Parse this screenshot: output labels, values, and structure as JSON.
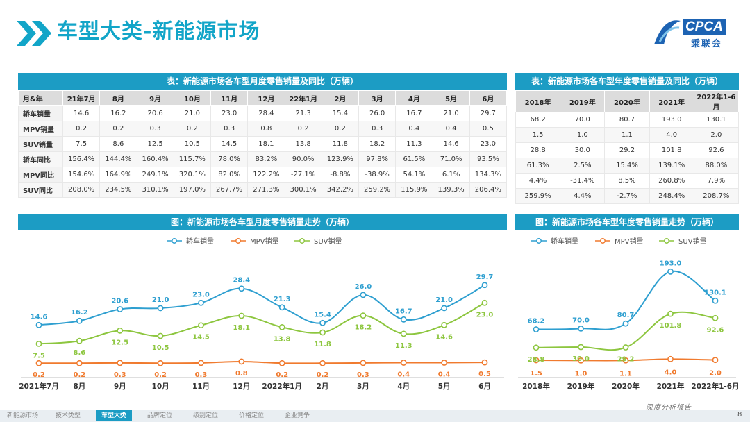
{
  "page_title": "车型大类-新能源市场",
  "logo": {
    "text": "CPCA",
    "subtext": "乘联会"
  },
  "table_monthly": {
    "title": "表：新能源市场各车型月度零售销量及同比（万辆）",
    "header": [
      "月&年",
      "21年7月",
      "8月",
      "9月",
      "10月",
      "11月",
      "12月",
      "22年1月",
      "2月",
      "3月",
      "4月",
      "5月",
      "6月"
    ],
    "rows": [
      [
        "轿车销量",
        "14.6",
        "16.2",
        "20.6",
        "21.0",
        "23.0",
        "28.4",
        "21.3",
        "15.4",
        "26.0",
        "16.7",
        "21.0",
        "29.7"
      ],
      [
        "MPV销量",
        "0.2",
        "0.2",
        "0.3",
        "0.2",
        "0.3",
        "0.8",
        "0.2",
        "0.2",
        "0.3",
        "0.4",
        "0.4",
        "0.5"
      ],
      [
        "SUV销量",
        "7.5",
        "8.6",
        "12.5",
        "10.5",
        "14.5",
        "18.1",
        "13.8",
        "11.8",
        "18.2",
        "11.3",
        "14.6",
        "23.0"
      ],
      [
        "轿车同比",
        "156.4%",
        "144.4%",
        "160.4%",
        "115.7%",
        "78.0%",
        "83.2%",
        "90.0%",
        "123.9%",
        "97.8%",
        "61.5%",
        "71.0%",
        "93.5%"
      ],
      [
        "MPV同比",
        "154.6%",
        "164.9%",
        "249.1%",
        "320.1%",
        "82.0%",
        "122.2%",
        "-27.1%",
        "-8.8%",
        "-38.9%",
        "54.1%",
        "6.1%",
        "134.3%"
      ],
      [
        "SUV同比",
        "208.0%",
        "234.5%",
        "310.1%",
        "197.0%",
        "267.7%",
        "271.3%",
        "300.1%",
        "342.2%",
        "259.2%",
        "115.9%",
        "139.3%",
        "206.4%"
      ]
    ]
  },
  "table_yearly": {
    "title": "表：新能源市场各车型年度零售销量及同比（万辆）",
    "header": [
      "2018年",
      "2019年",
      "2020年",
      "2021年",
      "2022年1-6月"
    ],
    "rows": [
      [
        "68.2",
        "70.0",
        "80.7",
        "193.0",
        "130.1"
      ],
      [
        "1.5",
        "1.0",
        "1.1",
        "4.0",
        "2.0"
      ],
      [
        "28.8",
        "30.0",
        "29.2",
        "101.8",
        "92.6"
      ],
      [
        "61.3%",
        "2.5%",
        "15.4%",
        "139.1%",
        "88.0%"
      ],
      [
        "4.4%",
        "-31.4%",
        "8.5%",
        "260.8%",
        "7.9%"
      ],
      [
        "259.9%",
        "4.4%",
        "-2.7%",
        "248.4%",
        "208.7%"
      ]
    ]
  },
  "chart_data": [
    {
      "type": "line",
      "title": "图：新能源市场各车型月度零售销量走势（万辆）",
      "categories": [
        "2021年7月",
        "8月",
        "9月",
        "10月",
        "11月",
        "12月",
        "2022年1月",
        "2月",
        "3月",
        "4月",
        "5月",
        "6月"
      ],
      "series": [
        {
          "name": "轿车销量",
          "color": "#2e9fd0",
          "values": [
            14.6,
            16.2,
            20.6,
            21.0,
            23.0,
            28.4,
            21.3,
            15.4,
            26.0,
            16.7,
            21.0,
            29.7
          ]
        },
        {
          "name": "MPV销量",
          "color": "#f07a2e",
          "values": [
            0.2,
            0.2,
            0.3,
            0.2,
            0.3,
            0.8,
            0.2,
            0.2,
            0.3,
            0.4,
            0.4,
            0.5
          ]
        },
        {
          "name": "SUV销量",
          "color": "#8dc63f",
          "values": [
            7.5,
            8.6,
            12.5,
            10.5,
            14.5,
            18.1,
            13.8,
            11.8,
            18.2,
            11.3,
            14.6,
            23.0
          ]
        }
      ],
      "ylim": [
        0,
        32
      ],
      "legend": "top"
    },
    {
      "type": "line",
      "title": "图：新能源市场各车型年度零售销量走势（万辆）",
      "categories": [
        "2018年",
        "2019年",
        "2020年",
        "2021年",
        "2022年1-6月"
      ],
      "series": [
        {
          "name": "轿车销量",
          "color": "#2e9fd0",
          "values": [
            68.2,
            70.0,
            80.7,
            193.0,
            130.1
          ]
        },
        {
          "name": "MPV销量",
          "color": "#f07a2e",
          "values": [
            1.5,
            1.0,
            1.1,
            4.0,
            2.0
          ]
        },
        {
          "name": "SUV销量",
          "color": "#8dc63f",
          "values": [
            28.8,
            30.0,
            29.2,
            101.8,
            92.6
          ]
        }
      ],
      "ylim": [
        0,
        210
      ],
      "legend": "top"
    }
  ],
  "footer": {
    "nav": [
      "新能源市场",
      "技术类型",
      "车型大类",
      "品牌定位",
      "级别定位",
      "价格定位",
      "企业竞争"
    ],
    "active": "车型大类",
    "tagline": "深度分析报告",
    "page": "8"
  }
}
